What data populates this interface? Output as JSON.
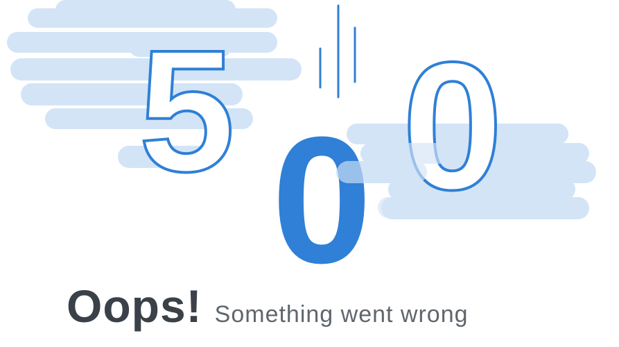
{
  "error": {
    "digit_left": "5",
    "digit_middle": "0",
    "digit_right": "0"
  },
  "message": {
    "headline": "Oops!",
    "detail": "Something went wrong"
  },
  "colors": {
    "cloud": "#d3e4f7",
    "outline": "#2f80d6",
    "solid_digit": "#2f80d6",
    "headline": "#3a4148",
    "detail": "#5f666c",
    "background": "#ffffff"
  }
}
